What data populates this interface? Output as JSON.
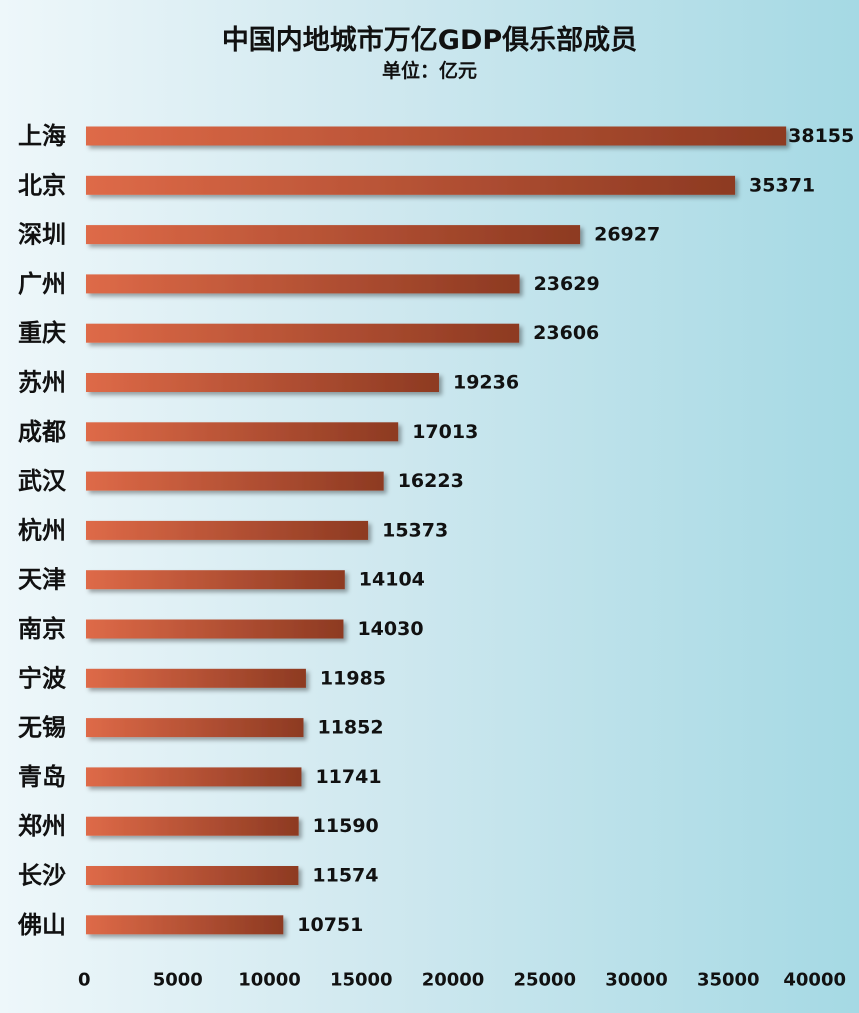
{
  "chart_data": {
    "type": "bar",
    "orientation": "horizontal",
    "title": "中国内地城市万亿GDP俱乐部成员",
    "subtitle": "单位：亿元",
    "categories": [
      "上海",
      "北京",
      "深圳",
      "广州",
      "重庆",
      "苏州",
      "成都",
      "武汉",
      "杭州",
      "天津",
      "南京",
      "宁波",
      "无锡",
      "青岛",
      "郑州",
      "长沙",
      "佛山"
    ],
    "values": [
      38155,
      35371,
      26927,
      23629,
      23606,
      19236,
      17013,
      16223,
      15373,
      14104,
      14030,
      11985,
      11852,
      11741,
      11590,
      11574,
      10751
    ],
    "xlim": [
      0,
      40000
    ],
    "xticks": [
      "0",
      "5000",
      "10000",
      "15000",
      "20000",
      "25000",
      "30000",
      "35000",
      "40000"
    ],
    "grid": false,
    "legend": "none",
    "bar_color": "#c9553a"
  }
}
